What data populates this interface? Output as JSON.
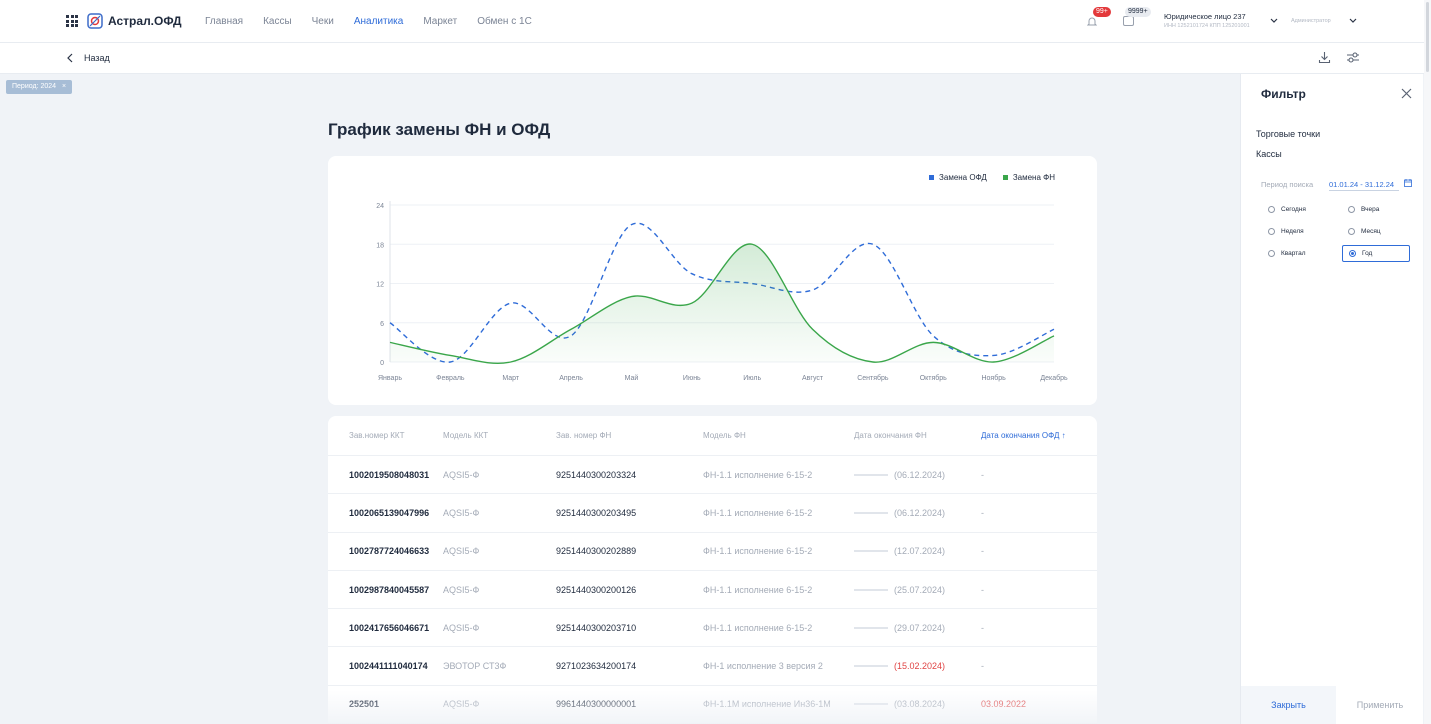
{
  "header": {
    "logo_text": "Астрал.ОФД",
    "nav": [
      "Главная",
      "Кассы",
      "Чеки",
      "Аналитика",
      "Маркет",
      "Обмен с 1С"
    ],
    "active_nav": "Аналитика",
    "notifications_badge": "99+",
    "messages_badge": "9999+",
    "org_name": "Юридическое лицо 237",
    "org_details": "ИНН 1252101724 КПП 125201001",
    "role": "Администратор"
  },
  "subheader": {
    "back_label": "Назад"
  },
  "filter_chip": {
    "label": "Период: 2024",
    "close": "×"
  },
  "page_title": "График замены ФН и ОФД",
  "chart_data": {
    "type": "line",
    "categories": [
      "Январь",
      "Февраль",
      "Март",
      "Апрель",
      "Май",
      "Июнь",
      "Июль",
      "Август",
      "Сентябрь",
      "Октябрь",
      "Ноябрь",
      "Декабрь"
    ],
    "yticks": [
      "24",
      "18",
      "12",
      "6",
      "0"
    ],
    "ylim": [
      0,
      24
    ],
    "grid": true,
    "legend": "top-right",
    "series": [
      {
        "name": "Замена ОФД",
        "color": "#2f6cd8",
        "style": "dashed",
        "values": [
          6,
          0,
          9,
          4,
          21,
          13.5,
          12,
          11,
          18,
          4,
          1,
          5
        ]
      },
      {
        "name": "Замена ФН",
        "color": "#3aa64a",
        "style": "solid",
        "area": true,
        "values": [
          3,
          1,
          0,
          5,
          10,
          9,
          18,
          5,
          0,
          3,
          0,
          4
        ]
      }
    ]
  },
  "table": {
    "columns": [
      "Зав.номер ККТ",
      "Модель ККТ",
      "Зав. номер ФН",
      "Модель ФН",
      "Дата окончания ФН",
      "Дата окончания ОФД ↑"
    ],
    "rows": [
      {
        "kkt": "1002019508048031",
        "model": "AQSI5-Ф",
        "fn": "9251440300203324",
        "fn_model": "ФН-1.1 исполнение 6-15-2",
        "fn_end": "(06.12.2024)",
        "fn_overdue": false,
        "ofd_end": "-",
        "ofd_red": false
      },
      {
        "kkt": "1002065139047996",
        "model": "AQSI5-Ф",
        "fn": "9251440300203495",
        "fn_model": "ФН-1.1 исполнение 6-15-2",
        "fn_end": "(06.12.2024)",
        "fn_overdue": false,
        "ofd_end": "-",
        "ofd_red": false
      },
      {
        "kkt": "1002787724046633",
        "model": "AQSI5-Ф",
        "fn": "9251440300202889",
        "fn_model": "ФН-1.1 исполнение 6-15-2",
        "fn_end": "(12.07.2024)",
        "fn_overdue": false,
        "ofd_end": "-",
        "ofd_red": false
      },
      {
        "kkt": "1002987840045587",
        "model": "AQSI5-Ф",
        "fn": "9251440300200126",
        "fn_model": "ФН-1.1 исполнение 6-15-2",
        "fn_end": "(25.07.2024)",
        "fn_overdue": false,
        "ofd_end": "-",
        "ofd_red": false
      },
      {
        "kkt": "1002417656046671",
        "model": "AQSI5-Ф",
        "fn": "9251440300203710",
        "fn_model": "ФН-1.1 исполнение 6-15-2",
        "fn_end": "(29.07.2024)",
        "fn_overdue": false,
        "ofd_end": "-",
        "ofd_red": false
      },
      {
        "kkt": "1002441111040174",
        "model": "ЭВОТОР СТ3Ф",
        "fn": "9271023634200174",
        "fn_model": "ФН-1 исполнение 3 версия 2",
        "fn_end": "(15.02.2024)",
        "fn_overdue": true,
        "ofd_end": "-",
        "ofd_red": false
      },
      {
        "kkt": "252501",
        "model": "AQSI5-Ф",
        "fn": "9961440300000001",
        "fn_model": "ФН-1.1М исполнение Ин36-1М",
        "fn_end": "(03.08.2024)",
        "fn_overdue": false,
        "ofd_end": "03.09.2022",
        "ofd_red": true
      }
    ]
  },
  "filter_panel": {
    "title": "Фильтр",
    "outlets_label": "Торговые точки",
    "registers_label": "Кассы",
    "period_label": "Период поиска",
    "period_value": "01.01.24 - 31.12.24",
    "options": [
      "Сегодня",
      "Вчера",
      "Неделя",
      "Месяц",
      "Квартал",
      "Год"
    ],
    "selected_option": "Год",
    "close_button": "Закрыть",
    "apply_button": "Применить"
  },
  "colors": {
    "accent": "#2f6cd8",
    "green": "#3aa64a",
    "danger": "#e04444"
  }
}
